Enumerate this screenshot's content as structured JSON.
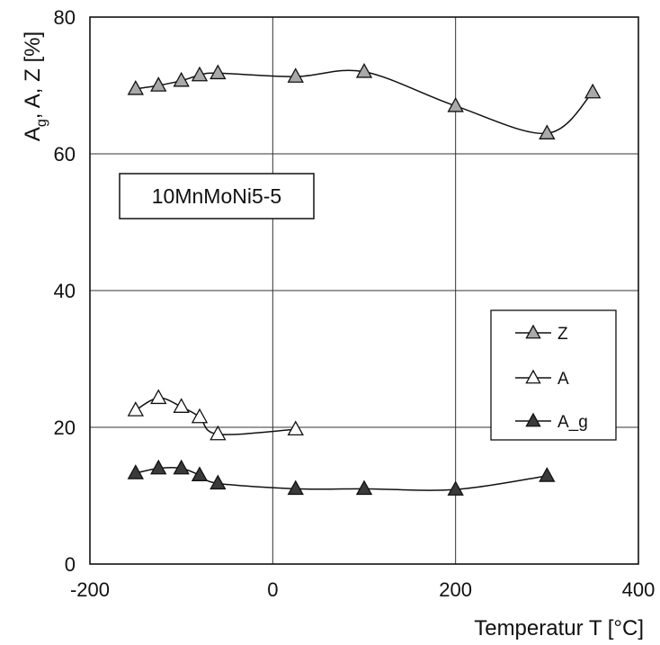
{
  "chart_data": {
    "type": "line",
    "title": "",
    "annotation": "10MnMoNi5-5",
    "xlabel": "Temperatur T  [°C]",
    "ylabel": "A_g, A, Z  [%]",
    "xlim": [
      -200,
      400
    ],
    "ylim": [
      0,
      80
    ],
    "xticks": [
      -200,
      0,
      200,
      400
    ],
    "yticks": [
      0,
      20,
      40,
      60,
      80
    ],
    "grid": true,
    "legend_position": "right",
    "series": [
      {
        "name": "Z",
        "marker": "triangle",
        "fill": "#a9a9a9",
        "points": [
          [
            -150,
            69.5
          ],
          [
            -125,
            70.0
          ],
          [
            -100,
            70.7
          ],
          [
            -80,
            71.5
          ],
          [
            -60,
            71.8
          ],
          [
            25,
            71.3
          ],
          [
            100,
            72.0
          ],
          [
            200,
            67.0
          ],
          [
            300,
            63.0
          ],
          [
            350,
            69.0
          ]
        ]
      },
      {
        "name": "A",
        "marker": "triangle",
        "fill": "#ffffff",
        "points": [
          [
            -150,
            22.5
          ],
          [
            -125,
            24.3
          ],
          [
            -100,
            23.0
          ],
          [
            -80,
            21.5
          ],
          [
            -60,
            19.0
          ],
          [
            25,
            19.7
          ]
        ]
      },
      {
        "name": "A_g",
        "marker": "triangle",
        "fill": "#3a3a3a",
        "points": [
          [
            -150,
            13.3
          ],
          [
            -125,
            14.0
          ],
          [
            -100,
            14.0
          ],
          [
            -80,
            13.0
          ],
          [
            -60,
            11.8
          ],
          [
            25,
            11.0
          ],
          [
            100,
            11.0
          ],
          [
            200,
            10.9
          ],
          [
            300,
            12.9
          ]
        ]
      }
    ]
  }
}
